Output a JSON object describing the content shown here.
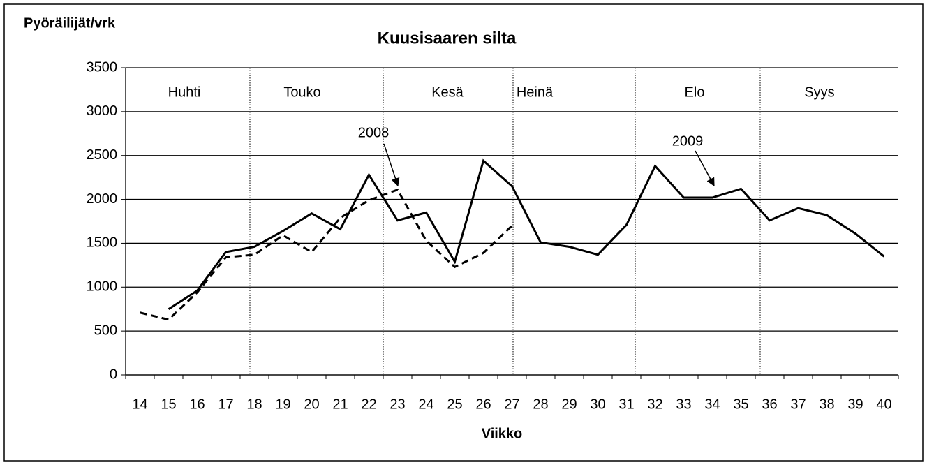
{
  "chart_data": {
    "type": "line",
    "title": "Kuusisaaren silta",
    "y_label": "Pyöräilijät/vrk",
    "x_label": "Viikko",
    "months": [
      "Huhti",
      "Touko",
      "Kesä",
      "Heinä",
      "Elo",
      "Syys"
    ],
    "categories": [
      "14",
      "15",
      "16",
      "17",
      "18",
      "19",
      "20",
      "21",
      "22",
      "23",
      "24",
      "25",
      "26",
      "27",
      "28",
      "29",
      "30",
      "31",
      "32",
      "33",
      "34",
      "35",
      "36",
      "37",
      "38",
      "39",
      "40"
    ],
    "series": [
      {
        "name": "2008",
        "color": "#000000",
        "dashed": true,
        "values": [
          710,
          630,
          940,
          1340,
          1370,
          1590,
          1400,
          1790,
          1990,
          2110,
          1530,
          1230,
          1390,
          1700,
          null,
          null,
          null,
          null,
          null,
          null,
          null,
          null,
          null,
          null,
          null,
          null,
          null
        ]
      },
      {
        "name": "2009",
        "color": "#000000",
        "dashed": false,
        "values": [
          null,
          750,
          960,
          1400,
          1460,
          1640,
          1840,
          1660,
          2280,
          1760,
          1850,
          1290,
          2440,
          2150,
          1510,
          1460,
          1370,
          1710,
          2380,
          2020,
          2020,
          2120,
          1760,
          1900,
          1820,
          1610,
          1350
        ]
      }
    ],
    "ylim": [
      0,
      3500
    ],
    "yticks": [
      0,
      500,
      1000,
      1500,
      2000,
      2500,
      3000,
      3500
    ],
    "grid": true
  }
}
